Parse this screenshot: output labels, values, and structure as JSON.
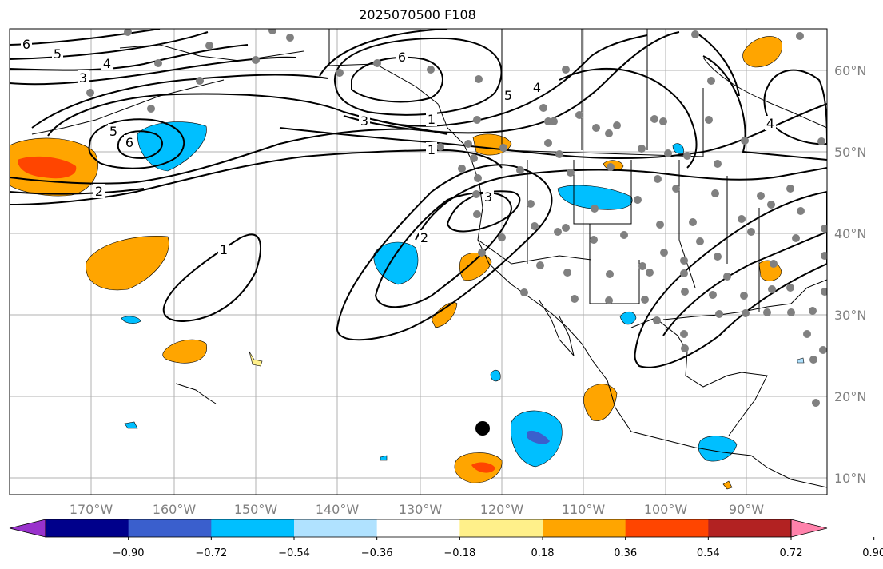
{
  "title": "2025070500 F108",
  "map": {
    "lon_labels": [
      "170°W",
      "160°W",
      "150°W",
      "140°W",
      "130°W",
      "120°W",
      "110°W",
      "100°W",
      "90°W"
    ],
    "lat_labels": [
      "60°N",
      "50°N",
      "40°N",
      "30°N",
      "20°N",
      "10°N"
    ],
    "contour_labels": [
      "6",
      "5",
      "4",
      "3",
      "5",
      "6",
      "2",
      "1",
      "6",
      "5",
      "4",
      "3",
      "1",
      "3",
      "2",
      "1",
      "4"
    ],
    "grid": true,
    "marker": "black-dot"
  },
  "colorbar": {
    "ticks": [
      "−0.90",
      "−0.72",
      "−0.54",
      "−0.36",
      "−0.18",
      "0.18",
      "0.36",
      "0.54",
      "0.72",
      "0.90"
    ],
    "colors": [
      "#9932cc",
      "#00008b",
      "#3a5fcd",
      "#00bfff",
      "#b0e2ff",
      "#ffffff",
      "#fff08a",
      "#ffa500",
      "#ff4500",
      "#b22222",
      "#ff82ab"
    ]
  }
}
